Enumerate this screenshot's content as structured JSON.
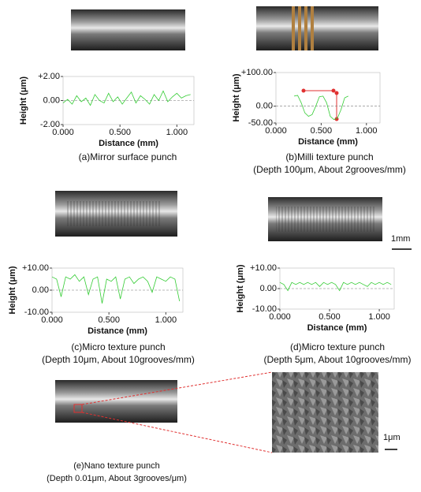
{
  "chart_data": [
    {
      "type": "line",
      "title": "(a)Mirror surface punch",
      "xlabel": "Distance (mm)",
      "ylabel": "Height (μm)",
      "color": "#33cc33",
      "xlim": [
        0,
        1.15
      ],
      "xticks": [
        {
          "value": 0,
          "label": "0.000"
        },
        {
          "value": 0.5,
          "label": "0.500"
        },
        {
          "value": 1,
          "label": "1.000"
        }
      ],
      "ylim": [
        -2,
        2
      ],
      "yticks": [
        {
          "value": 2,
          "label": "+2.00"
        },
        {
          "value": 0,
          "label": "0.00"
        },
        {
          "value": -2,
          "label": "-2.00"
        }
      ],
      "x": [
        0,
        0.04,
        0.08,
        0.12,
        0.16,
        0.2,
        0.24,
        0.28,
        0.32,
        0.36,
        0.4,
        0.44,
        0.48,
        0.52,
        0.56,
        0.6,
        0.64,
        0.68,
        0.72,
        0.76,
        0.8,
        0.84,
        0.88,
        0.92,
        0.96,
        1.0,
        1.04,
        1.08,
        1.12
      ],
      "values": [
        -0.2,
        0.1,
        -0.3,
        0.4,
        -0.1,
        0.2,
        -0.4,
        0.5,
        0.0,
        -0.2,
        0.6,
        -0.1,
        0.3,
        -0.3,
        0.2,
        0.7,
        -0.2,
        0.4,
        0.1,
        -0.3,
        0.5,
        0.0,
        0.8,
        -0.1,
        0.3,
        0.6,
        0.2,
        0.4,
        0.5
      ]
    },
    {
      "type": "line",
      "title": "(b)Milli texture punch",
      "subtitle": "(Depth 100μm, About 2grooves/mm)",
      "xlabel": "Distance (mm)",
      "ylabel": "Height (μm)",
      "color": "#33cc33",
      "xlim": [
        0,
        1.15
      ],
      "xticks": [
        {
          "value": 0,
          "label": "0.000"
        },
        {
          "value": 0.5,
          "label": "0.500"
        },
        {
          "value": 1,
          "label": "1.000"
        }
      ],
      "ylim": [
        -50,
        100
      ],
      "yticks": [
        {
          "value": 100,
          "label": "+100.00"
        },
        {
          "value": 0,
          "label": "0.00"
        },
        {
          "value": -50,
          "label": "-50.00"
        }
      ],
      "x": [
        0,
        0.04,
        0.08,
        0.12,
        0.16,
        0.2,
        0.24,
        0.28,
        0.32,
        0.36,
        0.4,
        0.44,
        0.48,
        0.52,
        0.56,
        0.6,
        0.64,
        0.68,
        0.72,
        0.76,
        0.8,
        0.84,
        0.88,
        0.92,
        0.96,
        1.0,
        1.04,
        1.08,
        1.12
      ],
      "values": [
        null,
        null,
        null,
        null,
        null,
        30,
        32,
        10,
        -20,
        -30,
        -25,
        0,
        28,
        30,
        10,
        -30,
        -40,
        -35,
        -10,
        25,
        30,
        null,
        null,
        null,
        null,
        null,
        null,
        null,
        null
      ]
    },
    {
      "type": "line",
      "title": "(c)Micro texture punch",
      "subtitle": "(Depth 10μm, About 10grooves/mm)",
      "xlabel": "Distance (mm)",
      "ylabel": "Height (μm)",
      "color": "#33cc33",
      "xlim": [
        0,
        1.15
      ],
      "xticks": [
        {
          "value": 0,
          "label": "0.000"
        },
        {
          "value": 0.5,
          "label": "0.500"
        },
        {
          "value": 1,
          "label": "1.000"
        }
      ],
      "ylim": [
        -10,
        10
      ],
      "yticks": [
        {
          "value": 10,
          "label": "+10.00"
        },
        {
          "value": 0,
          "label": "0.00"
        },
        {
          "value": -10,
          "label": "-10.00"
        }
      ],
      "x": [
        0,
        0.04,
        0.08,
        0.12,
        0.16,
        0.2,
        0.24,
        0.28,
        0.32,
        0.36,
        0.4,
        0.44,
        0.48,
        0.52,
        0.56,
        0.6,
        0.64,
        0.68,
        0.72,
        0.76,
        0.8,
        0.84,
        0.88,
        0.92,
        0.96,
        1.0,
        1.04,
        1.08,
        1.12
      ],
      "values": [
        6,
        5,
        -3,
        6,
        5,
        7,
        4,
        6,
        -2,
        5,
        6,
        -6,
        5,
        4,
        6,
        -4,
        5,
        6,
        3,
        5,
        6,
        4,
        -1,
        6,
        5,
        4,
        6,
        5,
        -5
      ]
    },
    {
      "type": "line",
      "title": "(d)Micro texture punch",
      "subtitle": "(Depth 5μm, About 10grooves/mm)",
      "xlabel": "Distance (mm)",
      "ylabel": "Height (μm)",
      "color": "#33cc33",
      "xlim": [
        0,
        1.15
      ],
      "xticks": [
        {
          "value": 0,
          "label": "0.000"
        },
        {
          "value": 0.5,
          "label": "0.500"
        },
        {
          "value": 1,
          "label": "1.000"
        }
      ],
      "ylim": [
        -10,
        10
      ],
      "yticks": [
        {
          "value": 10,
          "label": "+10.00"
        },
        {
          "value": 0,
          "label": "0.00"
        },
        {
          "value": -10,
          "label": "-10.00"
        }
      ],
      "x": [
        0,
        0.04,
        0.08,
        0.12,
        0.16,
        0.2,
        0.24,
        0.28,
        0.32,
        0.36,
        0.4,
        0.44,
        0.48,
        0.52,
        0.56,
        0.6,
        0.64,
        0.68,
        0.72,
        0.76,
        0.8,
        0.84,
        0.88,
        0.92,
        0.96,
        1.0,
        1.04,
        1.08,
        1.12
      ],
      "values": [
        3,
        2,
        -1,
        3,
        2,
        3,
        2,
        3,
        2,
        3,
        1,
        3,
        2,
        3,
        2,
        -1,
        3,
        2,
        3,
        2,
        3,
        2,
        1,
        3,
        2,
        3,
        2,
        3,
        2
      ]
    }
  ],
  "scale_label": "1mm",
  "panel_e": {
    "title": "(e)Nano texture punch",
    "subtitle": "(Depth 0.01μm, About 3grooves/μm)",
    "scale_label": "1μm"
  }
}
